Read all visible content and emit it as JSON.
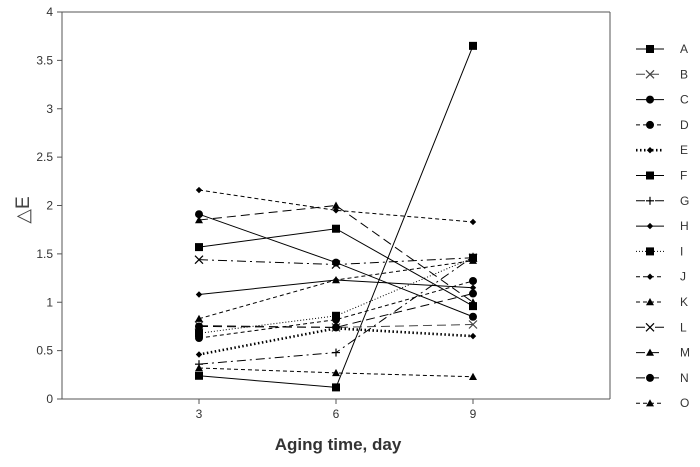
{
  "chart_data": {
    "type": "line",
    "title": "",
    "xlabel": "Aging time, day",
    "ylabel": "△E",
    "x": [
      3,
      6,
      9
    ],
    "xlim": [
      0,
      12
    ],
    "ylim": [
      0,
      4
    ],
    "yticks": [
      0,
      0.5,
      1,
      1.5,
      2,
      2.5,
      3,
      3.5,
      4
    ],
    "ytick_labels": [
      "0",
      "0.5",
      "1",
      "1.5",
      "2",
      "2.5",
      "3",
      "3.5",
      "4"
    ],
    "xtick_labels": [
      "3",
      "6",
      "9"
    ],
    "grid": false,
    "legend_position": "right",
    "series": [
      {
        "name": "A",
        "values": [
          0.24,
          0.12,
          3.65
        ],
        "marker": "square",
        "dash": "solid",
        "color": "#000000"
      },
      {
        "name": "B",
        "values": [
          0.76,
          0.74,
          0.77
        ],
        "marker": "x",
        "dash": "longdash",
        "color": "#444444"
      },
      {
        "name": "C",
        "values": [
          1.91,
          1.41,
          0.85
        ],
        "marker": "circle",
        "dash": "solid",
        "color": "#000000"
      },
      {
        "name": "D",
        "values": [
          0.63,
          0.82,
          1.22
        ],
        "marker": "circle",
        "dash": "shortdash",
        "color": "#000000"
      },
      {
        "name": "E",
        "values": [
          0.46,
          0.73,
          0.65
        ],
        "marker": "diamond",
        "dash": "dotted",
        "color": "#000000"
      },
      {
        "name": "F",
        "values": [
          1.57,
          1.76,
          0.96
        ],
        "marker": "square",
        "dash": "solid",
        "color": "#000000"
      },
      {
        "name": "G",
        "values": [
          0.36,
          0.48,
          1.47
        ],
        "marker": "plus",
        "dash": "dashdot",
        "color": "#000000"
      },
      {
        "name": "H",
        "values": [
          1.08,
          1.23,
          1.15
        ],
        "marker": "diamond",
        "dash": "solid",
        "color": "#000000"
      },
      {
        "name": "I",
        "values": [
          0.68,
          0.86,
          1.46
        ],
        "marker": "square",
        "dash": "finedot",
        "color": "#000000"
      },
      {
        "name": "J",
        "values": [
          2.16,
          1.95,
          1.83
        ],
        "marker": "diamond",
        "dash": "shortdash",
        "color": "#000000"
      },
      {
        "name": "K",
        "values": [
          0.32,
          0.27,
          0.23
        ],
        "marker": "triangle",
        "dash": "shortdash",
        "color": "#000000"
      },
      {
        "name": "L",
        "values": [
          1.44,
          1.39,
          1.46
        ],
        "marker": "x",
        "dash": "dashdot",
        "color": "#000000"
      },
      {
        "name": "M",
        "values": [
          1.85,
          2.0,
          1.0
        ],
        "marker": "triangle",
        "dash": "longdash",
        "color": "#000000"
      },
      {
        "name": "N",
        "values": [
          0.75,
          0.74,
          1.09
        ],
        "marker": "circle",
        "dash": "longdash",
        "color": "#000000"
      },
      {
        "name": "O",
        "values": [
          0.83,
          1.23,
          1.43
        ],
        "marker": "triangle",
        "dash": "shortdash",
        "color": "#000000"
      }
    ]
  }
}
